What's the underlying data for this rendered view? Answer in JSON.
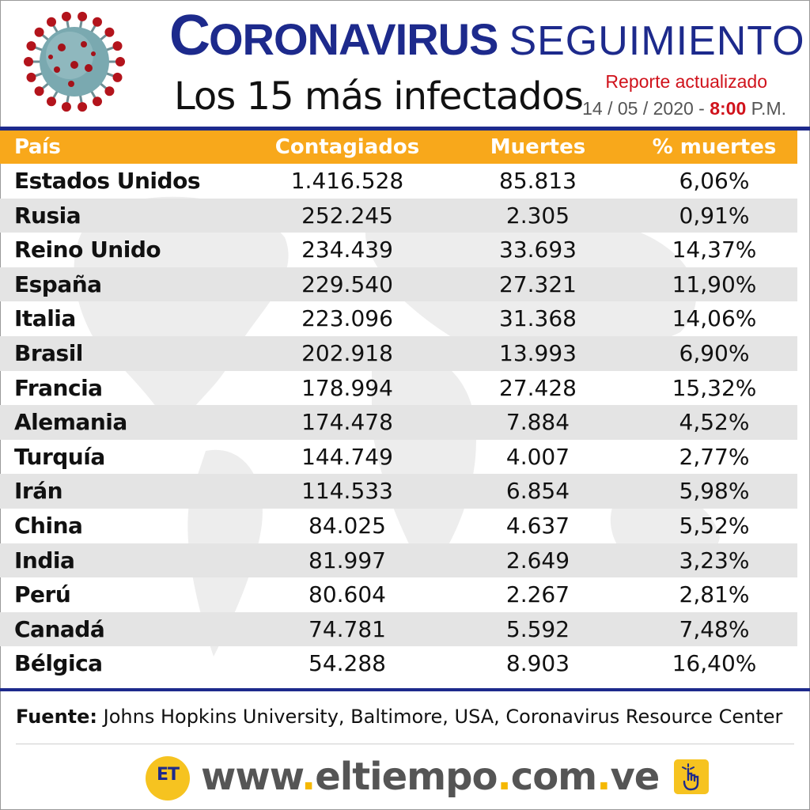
{
  "header": {
    "title_cap": "C",
    "title_main": "ORONAVIRUS",
    "title_sub": "SEGUIMIENTO",
    "subtitle": "Los 15 más infectados",
    "report_label": "Reporte actualizado",
    "report_date": "14 / 05 / 2020 -",
    "report_time": "8:00",
    "report_ampm": "P.M."
  },
  "table": {
    "columns": [
      "País",
      "Contagiados",
      "Muertes",
      "% muertes"
    ],
    "rows": [
      [
        "Estados Unidos",
        "1.416.528",
        "85.813",
        "6,06%"
      ],
      [
        "Rusia",
        "252.245",
        "2.305",
        "0,91%"
      ],
      [
        "Reino Unido",
        "234.439",
        "33.693",
        "14,37%"
      ],
      [
        "España",
        "229.540",
        "27.321",
        "11,90%"
      ],
      [
        "Italia",
        "223.096",
        "31.368",
        "14,06%"
      ],
      [
        "Brasil",
        "202.918",
        "13.993",
        "6,90%"
      ],
      [
        "Francia",
        "178.994",
        "27.428",
        "15,32%"
      ],
      [
        "Alemania",
        "174.478",
        "7.884",
        "4,52%"
      ],
      [
        "Turquía",
        "144.749",
        "4.007",
        "2,77%"
      ],
      [
        "Irán",
        "114.533",
        "6.854",
        "5,98%"
      ],
      [
        "China",
        "84.025",
        "4.637",
        "5,52%"
      ],
      [
        "India",
        "81.997",
        "2.649",
        "3,23%"
      ],
      [
        "Perú",
        "80.604",
        "2.267",
        "2,81%"
      ],
      [
        "Canadá",
        "74.781",
        "5.592",
        "7,48%"
      ],
      [
        "Bélgica",
        "54.288",
        "8.903",
        "16,40%"
      ]
    ]
  },
  "footer": {
    "source_label": "Fuente:",
    "source_text": "Johns Hopkins University, Baltimore, USA, Coronavirus Resource Center",
    "logo_text": "ET",
    "url_parts": [
      "www",
      ".",
      "eltiempo",
      ".",
      "com",
      ".",
      "ve"
    ]
  },
  "colors": {
    "title_blue": "#1d2a8c",
    "header_orange": "#f8a81b",
    "accent_red": "#d0121b",
    "row_alt_gray": "#e4e4e4",
    "logo_yellow": "#f6c320"
  },
  "icons": [
    "coronavirus-illustration",
    "world-map-watermark",
    "et-logo",
    "hand-click-icon"
  ]
}
